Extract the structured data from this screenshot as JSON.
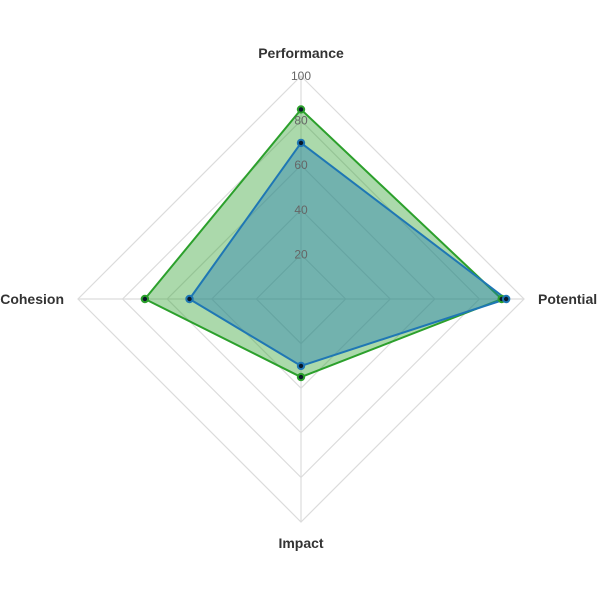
{
  "chart_data": {
    "type": "radar",
    "axes": [
      "Performance",
      "Potential",
      "Impact",
      "Cohesion"
    ],
    "r_range": [
      0,
      100
    ],
    "r_ticks": [
      20,
      40,
      60,
      80,
      100
    ],
    "grid": true,
    "legend": "none",
    "series": [
      {
        "values": [
          85,
          90,
          35,
          70
        ],
        "color": "#2ca02c",
        "fill": "rgba(44,160,44,0.4)"
      },
      {
        "values": [
          70,
          92,
          30,
          50
        ],
        "color": "#1f77b4",
        "fill": "rgba(31,119,180,0.4)"
      }
    ]
  }
}
